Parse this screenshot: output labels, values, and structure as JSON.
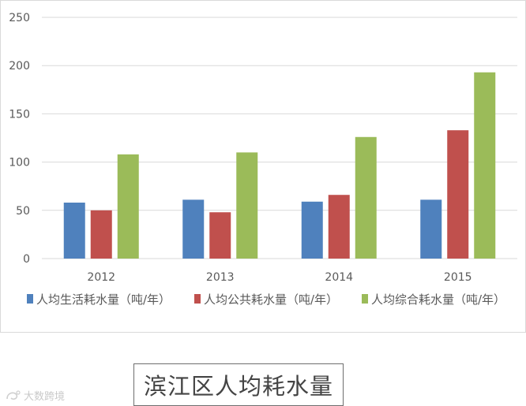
{
  "chart_data": {
    "type": "bar",
    "title": "滨江区人均耗水量",
    "xlabel": "",
    "ylabel": "",
    "categories": [
      "2012",
      "2013",
      "2014",
      "2015"
    ],
    "series": [
      {
        "name": "人均生活耗水量（吨/年）",
        "values": [
          58,
          61,
          59,
          61
        ]
      },
      {
        "name": "人均公共耗水量（吨/年）",
        "values": [
          50,
          48,
          66,
          133
        ]
      },
      {
        "name": "人均综合耗水量（吨/年）",
        "values": [
          108,
          110,
          126,
          193
        ]
      }
    ],
    "yticks": [
      "0",
      "50",
      "100",
      "150",
      "200",
      "250"
    ],
    "ylim": [
      0,
      250
    ],
    "grid": true,
    "legend": "bottom"
  },
  "colors": {
    "series": [
      "#4f81bd",
      "#c0504d",
      "#9bbb59"
    ],
    "grid": "#d9d9d9",
    "axis_text": "#595959"
  },
  "watermark": {
    "text": "大数跨境"
  }
}
